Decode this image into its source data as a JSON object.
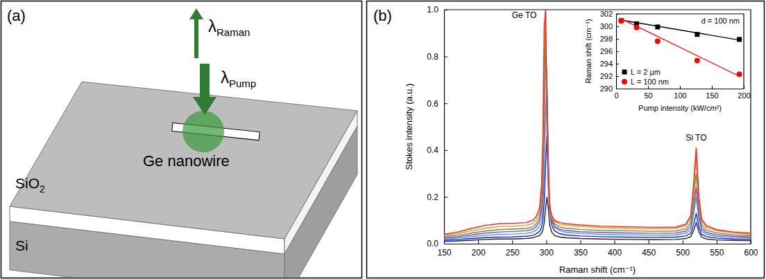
{
  "diagram": {
    "panel_label": "(a)",
    "beam_out": {
      "symbol": "λ",
      "subscript": "Raman"
    },
    "beam_in": {
      "symbol": "λ",
      "subscript": "Pump"
    },
    "nanowire": "Ge nanowire",
    "layers": [
      {
        "text": "SiO",
        "subscript": "2"
      },
      {
        "text": "Si"
      }
    ]
  },
  "chart_data": [
    {
      "type": "line",
      "panel_label": "(b)",
      "x_label": "Raman shift (cm⁻¹)",
      "y_label": "Stokes intensity (a.u.)",
      "x": [
        150,
        170,
        190,
        210,
        230,
        250,
        270,
        280,
        285,
        290,
        293,
        295,
        297,
        299,
        301,
        303,
        305,
        308,
        312,
        320,
        330,
        350,
        380,
        420,
        460,
        490,
        505,
        512,
        516,
        520,
        524,
        528,
        535,
        550,
        575,
        600
      ],
      "series": [
        {
          "color": "#222222",
          "values": [
            0.01,
            0.012,
            0.015,
            0.018,
            0.02,
            0.02,
            0.022,
            0.025,
            0.03,
            0.035,
            0.045,
            0.06,
            0.09,
            0.15,
            0.2,
            0.15,
            0.08,
            0.05,
            0.035,
            0.028,
            0.025,
            0.022,
            0.02,
            0.018,
            0.017,
            0.018,
            0.022,
            0.03,
            0.055,
            0.09,
            0.05,
            0.028,
            0.02,
            0.016,
            0.014,
            0.013
          ]
        },
        {
          "color": "#1a1aff",
          "values": [
            0.015,
            0.018,
            0.022,
            0.026,
            0.028,
            0.029,
            0.032,
            0.036,
            0.042,
            0.052,
            0.07,
            0.1,
            0.18,
            0.34,
            0.46,
            0.3,
            0.15,
            0.08,
            0.055,
            0.042,
            0.037,
            0.033,
            0.03,
            0.028,
            0.027,
            0.028,
            0.033,
            0.045,
            0.08,
            0.13,
            0.07,
            0.04,
            0.03,
            0.024,
            0.02,
            0.018
          ]
        },
        {
          "color": "#22aadd",
          "values": [
            0.02,
            0.025,
            0.03,
            0.036,
            0.04,
            0.041,
            0.044,
            0.05,
            0.058,
            0.075,
            0.1,
            0.15,
            0.3,
            0.56,
            0.68,
            0.4,
            0.18,
            0.1,
            0.07,
            0.055,
            0.048,
            0.044,
            0.04,
            0.038,
            0.036,
            0.037,
            0.045,
            0.06,
            0.12,
            0.2,
            0.1,
            0.055,
            0.04,
            0.032,
            0.027,
            0.024
          ]
        },
        {
          "color": "#cc22cc",
          "values": [
            0.025,
            0.03,
            0.037,
            0.045,
            0.05,
            0.052,
            0.055,
            0.062,
            0.072,
            0.095,
            0.14,
            0.22,
            0.5,
            0.87,
            0.7,
            0.35,
            0.17,
            0.1,
            0.075,
            0.062,
            0.056,
            0.051,
            0.048,
            0.046,
            0.044,
            0.045,
            0.054,
            0.075,
            0.15,
            0.24,
            0.12,
            0.065,
            0.048,
            0.038,
            0.032,
            0.028
          ]
        },
        {
          "color": "#33aa33",
          "values": [
            0.03,
            0.036,
            0.045,
            0.054,
            0.06,
            0.062,
            0.065,
            0.072,
            0.085,
            0.11,
            0.17,
            0.28,
            0.62,
            0.93,
            0.66,
            0.3,
            0.16,
            0.11,
            0.085,
            0.072,
            0.066,
            0.061,
            0.057,
            0.055,
            0.053,
            0.054,
            0.064,
            0.09,
            0.18,
            0.3,
            0.15,
            0.08,
            0.058,
            0.046,
            0.038,
            0.034
          ]
        },
        {
          "color": "#ff8c1a",
          "values": [
            0.035,
            0.043,
            0.055,
            0.066,
            0.073,
            0.075,
            0.078,
            0.086,
            0.1,
            0.13,
            0.21,
            0.36,
            0.8,
            0.96,
            0.55,
            0.26,
            0.15,
            0.11,
            0.095,
            0.083,
            0.078,
            0.073,
            0.069,
            0.066,
            0.064,
            0.065,
            0.077,
            0.11,
            0.22,
            0.37,
            0.18,
            0.095,
            0.07,
            0.055,
            0.046,
            0.04
          ]
        },
        {
          "color": "#ff1a1a",
          "values": [
            0.04,
            0.05,
            0.065,
            0.078,
            0.085,
            0.087,
            0.09,
            0.1,
            0.115,
            0.15,
            0.25,
            0.45,
            0.93,
            1.0,
            0.5,
            0.24,
            0.15,
            0.12,
            0.1,
            0.09,
            0.085,
            0.08,
            0.075,
            0.072,
            0.07,
            0.071,
            0.084,
            0.12,
            0.25,
            0.41,
            0.2,
            0.105,
            0.077,
            0.06,
            0.05,
            0.045
          ]
        }
      ],
      "xlim": [
        150,
        600
      ],
      "xticks": [
        150,
        200,
        250,
        300,
        350,
        400,
        450,
        500,
        550,
        600
      ],
      "ylim": [
        0,
        1.0
      ],
      "yticks": [
        {
          "value": 0,
          "label": "0.0"
        },
        {
          "value": 0.2,
          "label": "0.2"
        },
        {
          "value": 0.4,
          "label": "0.4"
        },
        {
          "value": 0.6,
          "label": "0.6"
        },
        {
          "value": 0.8,
          "label": "0.8"
        },
        {
          "value": 1.0,
          "label": "1.0"
        }
      ],
      "annotations": [
        {
          "text": "Ge TO",
          "x": 300,
          "y": 1.0
        },
        {
          "text": "Si TO",
          "x": 520,
          "y": 0.41
        }
      ]
    },
    {
      "type": "scatter",
      "x_label": "Pump intensity (kW/cm²)",
      "y_label": "Raman shift (cm⁻¹)",
      "annotations": [
        {
          "text": "d = 100 nm"
        }
      ],
      "legend": "lower left",
      "xlim": [
        0,
        200
      ],
      "xticks": [
        0,
        50,
        100,
        150,
        200
      ],
      "ylim": [
        290,
        302
      ],
      "yticks": [
        290,
        292,
        294,
        296,
        298,
        300,
        302
      ],
      "series": [
        {
          "name": "L = 2 µm",
          "type": "scatter",
          "marker": "square",
          "color": "#000000",
          "x": [
            8,
            32,
            65,
            127,
            193
          ],
          "values": [
            300.9,
            300.4,
            299.9,
            298.7,
            297.9
          ]
        },
        {
          "name": "L = 100 nm",
          "type": "scatter",
          "marker": "circle",
          "color": "#ff0000",
          "x": [
            8,
            32,
            65,
            127,
            193
          ],
          "values": [
            300.9,
            299.8,
            297.6,
            294.5,
            292.3
          ]
        },
        {
          "type": "line",
          "color": "#000000",
          "x": [
            8,
            193
          ],
          "values": [
            301.0,
            297.8
          ]
        },
        {
          "type": "line",
          "color": "#ff0000",
          "x": [
            8,
            193
          ],
          "values": [
            301.2,
            292.0
          ]
        }
      ]
    }
  ]
}
